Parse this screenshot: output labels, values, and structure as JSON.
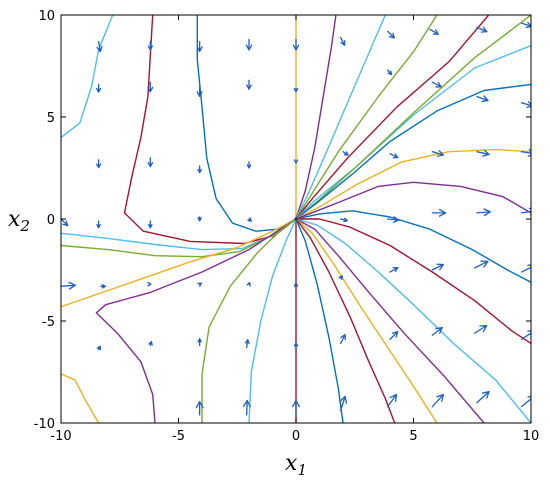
{
  "chart_data": {
    "type": "phase-portrait",
    "title": "",
    "xlabel": {
      "symbol": "x",
      "subscript": "1"
    },
    "ylabel": {
      "symbol": "x",
      "subscript": "2"
    },
    "xlim": [
      -10,
      10
    ],
    "ylim": [
      -10,
      10
    ],
    "xticks": [
      -10,
      -5,
      0,
      5,
      10
    ],
    "yticks": [
      -10,
      -5,
      0,
      5,
      10
    ],
    "xtick_labels": [
      "-10",
      "-5",
      "0",
      "5",
      "10"
    ],
    "ytick_labels": [
      "-10",
      "-5",
      "0",
      "5",
      "10"
    ],
    "grid": false,
    "equilibrium": [
      0,
      0
    ],
    "colors": {
      "blue": "#0072BD",
      "yellow": "#EDB120",
      "maroon": "#A2142F",
      "purple": "#7E2F8E",
      "green": "#77AC30",
      "cyan": "#4DBEEE",
      "arrow": "#1f5fbf"
    },
    "trajectories": [
      {
        "color": "yellow",
        "points": [
          [
            0,
            10
          ],
          [
            0,
            0
          ]
        ]
      },
      {
        "color": "maroon",
        "points": [
          [
            0,
            -10
          ],
          [
            0,
            0
          ]
        ]
      },
      {
        "color": "maroon",
        "points": [
          [
            -6.1,
            10
          ],
          [
            -6.2,
            8
          ],
          [
            -6.3,
            6
          ],
          [
            -6.6,
            4
          ],
          [
            -7.0,
            2
          ],
          [
            -7.3,
            0.3
          ],
          [
            -6.5,
            -0.6
          ],
          [
            -4.5,
            -1.1
          ],
          [
            -2.2,
            -1.2
          ],
          [
            -0.9,
            -0.8
          ],
          [
            0,
            0
          ]
        ]
      },
      {
        "color": "blue",
        "points": [
          [
            -4.2,
            10
          ],
          [
            -4.2,
            7.8
          ],
          [
            -4.0,
            5.5
          ],
          [
            -3.8,
            3
          ],
          [
            -3.4,
            1
          ],
          [
            -2.7,
            -0.2
          ],
          [
            -1.7,
            -0.6
          ],
          [
            -0.8,
            -0.5
          ],
          [
            0,
            0
          ]
        ]
      },
      {
        "color": "cyan",
        "points": [
          [
            -10,
            4
          ],
          [
            -9.2,
            4.7
          ],
          [
            -8.7,
            6.5
          ],
          [
            -8.4,
            8.3
          ],
          [
            -7.8,
            10
          ]
        ]
      },
      {
        "color": "cyan",
        "points": [
          [
            -10,
            -0.7
          ],
          [
            -8,
            -0.95
          ],
          [
            -6,
            -1.25
          ],
          [
            -4,
            -1.5
          ],
          [
            -2.3,
            -1.45
          ],
          [
            -1.0,
            -0.8
          ],
          [
            0,
            0
          ]
        ]
      },
      {
        "color": "green",
        "points": [
          [
            -10,
            -1.3
          ],
          [
            -8,
            -1.5
          ],
          [
            -6,
            -1.8
          ],
          [
            -4,
            -1.85
          ],
          [
            -2.4,
            -1.6
          ],
          [
            -1.0,
            -0.8
          ],
          [
            0,
            0
          ]
        ]
      },
      {
        "color": "yellow",
        "points": [
          [
            -10,
            -4.3
          ],
          [
            -8.5,
            -3.7
          ],
          [
            -6.5,
            -2.9
          ],
          [
            -4.5,
            -2.1
          ],
          [
            -2.5,
            -1.4
          ],
          [
            -1.0,
            -0.6
          ],
          [
            0,
            0
          ]
        ]
      },
      {
        "color": "purple",
        "points": [
          [
            -6.0,
            -10
          ],
          [
            -6.1,
            -8.6
          ],
          [
            -6.6,
            -7.0
          ],
          [
            -7.6,
            -5.6
          ],
          [
            -8.5,
            -4.6
          ],
          [
            -8.1,
            -4.2
          ],
          [
            -6.2,
            -3.6
          ],
          [
            -4.0,
            -2.6
          ],
          [
            -2.0,
            -1.5
          ],
          [
            -0.8,
            -0.6
          ],
          [
            0,
            0
          ]
        ]
      },
      {
        "color": "yellow",
        "points": [
          [
            -10,
            -7.6
          ],
          [
            -9.4,
            -7.9
          ],
          [
            -9.0,
            -8.8
          ],
          [
            -8.4,
            -10
          ]
        ]
      },
      {
        "color": "green",
        "points": [
          [
            -4.0,
            -10
          ],
          [
            -4.0,
            -7.6
          ],
          [
            -3.7,
            -5.3
          ],
          [
            -2.8,
            -3.3
          ],
          [
            -1.6,
            -1.6
          ],
          [
            -0.6,
            -0.5
          ],
          [
            0,
            0
          ]
        ]
      },
      {
        "color": "cyan",
        "points": [
          [
            -2.0,
            -10
          ],
          [
            -1.9,
            -7.5
          ],
          [
            -1.5,
            -5.0
          ],
          [
            -1.0,
            -2.8
          ],
          [
            -0.4,
            -1.0
          ],
          [
            0,
            0
          ]
        ]
      },
      {
        "color": "purple",
        "points": [
          [
            0,
            0
          ],
          [
            0.4,
            1.4
          ],
          [
            0.8,
            3.5
          ],
          [
            1.2,
            6.3
          ],
          [
            1.5,
            8.4
          ],
          [
            1.7,
            10
          ]
        ]
      },
      {
        "color": "cyan",
        "points": [
          [
            0,
            0
          ],
          [
            0.5,
            1.2
          ],
          [
            1.3,
            3.3
          ],
          [
            2.3,
            6.0
          ],
          [
            3.2,
            8.4
          ],
          [
            3.8,
            10
          ]
        ]
      },
      {
        "color": "green",
        "points": [
          [
            0,
            0
          ],
          [
            0.6,
            1.1
          ],
          [
            1.8,
            3.3
          ],
          [
            3.5,
            6.0
          ],
          [
            5.0,
            8.2
          ],
          [
            6.0,
            10
          ]
        ]
      },
      {
        "color": "maroon",
        "points": [
          [
            0,
            0
          ],
          [
            0.7,
            1.0
          ],
          [
            2.2,
            3.0
          ],
          [
            4.3,
            5.5
          ],
          [
            6.5,
            7.7
          ],
          [
            8.2,
            10
          ]
        ]
      },
      {
        "color": "cyan",
        "points": [
          [
            0,
            0
          ],
          [
            0.8,
            0.9
          ],
          [
            2.6,
            2.6
          ],
          [
            5.0,
            5.1
          ],
          [
            7.6,
            7.4
          ],
          [
            10,
            8.5
          ]
        ]
      },
      {
        "color": "green",
        "points": [
          [
            0,
            0
          ],
          [
            0.9,
            0.85
          ],
          [
            2.6,
            2.6
          ],
          [
            5.0,
            5.2
          ],
          [
            7.6,
            7.9
          ],
          [
            10,
            10
          ]
        ]
      },
      {
        "color": "blue",
        "points": [
          [
            0,
            0
          ],
          [
            0.9,
            0.8
          ],
          [
            2.4,
            2.2
          ],
          [
            4.0,
            3.8
          ],
          [
            6.0,
            5.3
          ],
          [
            8.0,
            6.3
          ],
          [
            10,
            6.6
          ]
        ]
      },
      {
        "color": "yellow",
        "points": [
          [
            0,
            0
          ],
          [
            1.0,
            0.6
          ],
          [
            2.6,
            1.7
          ],
          [
            4.5,
            2.8
          ],
          [
            6.5,
            3.3
          ],
          [
            8.5,
            3.4
          ],
          [
            10,
            3.3
          ]
        ]
      },
      {
        "color": "purple",
        "points": [
          [
            0,
            0
          ],
          [
            0.9,
            0.4
          ],
          [
            2.0,
            0.9
          ],
          [
            3.5,
            1.6
          ],
          [
            5.0,
            1.8
          ],
          [
            7.0,
            1.6
          ],
          [
            8.8,
            1.1
          ],
          [
            10,
            0.3
          ]
        ]
      },
      {
        "color": "blue",
        "points": [
          [
            0,
            0
          ],
          [
            1.0,
            0.25
          ],
          [
            2.4,
            0.4
          ],
          [
            4.0,
            0.1
          ],
          [
            5.7,
            -0.5
          ],
          [
            7.5,
            -1.5
          ],
          [
            9.0,
            -2.5
          ],
          [
            10,
            -3.1
          ]
        ]
      },
      {
        "color": "maroon",
        "points": [
          [
            0,
            0
          ],
          [
            1.0,
            0
          ],
          [
            2.3,
            -0.4
          ],
          [
            4.0,
            -1.3
          ],
          [
            5.8,
            -2.6
          ],
          [
            7.6,
            -4.0
          ],
          [
            9.2,
            -5.5
          ],
          [
            10,
            -6.1
          ]
        ]
      },
      {
        "color": "cyan",
        "points": [
          [
            0,
            0
          ],
          [
            0.9,
            -0.3
          ],
          [
            2.1,
            -1.2
          ],
          [
            3.5,
            -2.6
          ],
          [
            5.0,
            -4.2
          ],
          [
            6.7,
            -6.1
          ],
          [
            8.5,
            -7.9
          ],
          [
            10,
            -10
          ]
        ]
      },
      {
        "color": "purple",
        "points": [
          [
            0,
            0
          ],
          [
            0.8,
            -0.5
          ],
          [
            1.8,
            -1.8
          ],
          [
            3.1,
            -3.6
          ],
          [
            4.6,
            -5.6
          ],
          [
            6.3,
            -7.7
          ],
          [
            8.0,
            -10
          ]
        ]
      },
      {
        "color": "yellow",
        "points": [
          [
            0,
            0
          ],
          [
            0.7,
            -0.7
          ],
          [
            1.6,
            -2.2
          ],
          [
            2.7,
            -4.2
          ],
          [
            3.9,
            -6.3
          ],
          [
            5.0,
            -8.2
          ],
          [
            6.0,
            -10
          ]
        ]
      },
      {
        "color": "maroon",
        "points": [
          [
            0,
            0
          ],
          [
            0.6,
            -0.9
          ],
          [
            1.4,
            -2.6
          ],
          [
            2.3,
            -4.8
          ],
          [
            3.1,
            -7.0
          ],
          [
            3.8,
            -8.8
          ],
          [
            4.2,
            -10
          ]
        ]
      },
      {
        "color": "blue",
        "points": [
          [
            0,
            0
          ],
          [
            0.4,
            -1.1
          ],
          [
            0.9,
            -3.2
          ],
          [
            1.4,
            -5.8
          ],
          [
            1.8,
            -8.3
          ],
          [
            2.0,
            -10
          ]
        ]
      }
    ],
    "quiver": [
      [
        -8.4,
        8.7,
        0.15,
        -0.9
      ],
      [
        -6.2,
        8.7,
        0,
        -0.75
      ],
      [
        -4.1,
        8.7,
        0,
        -0.9
      ],
      [
        -2.0,
        8.8,
        0,
        -0.95
      ],
      [
        0,
        8.8,
        0,
        -0.95
      ],
      [
        1.9,
        8.9,
        0.35,
        -0.7
      ],
      [
        3.9,
        9.2,
        0.6,
        -0.6
      ],
      [
        5.7,
        9.3,
        0.75,
        -0.45
      ],
      [
        7.7,
        9.4,
        0.9,
        -0.4
      ],
      [
        9.6,
        9.6,
        0.9,
        -0.3
      ],
      [
        -8.4,
        6.6,
        0,
        -0.7
      ],
      [
        -6.2,
        6.7,
        0,
        -0.85
      ],
      [
        -4.1,
        6.5,
        0,
        -0.9
      ],
      [
        -2.0,
        6.8,
        0,
        -0.8
      ],
      [
        0,
        6.4,
        0,
        -0.3
      ],
      [
        3.9,
        7.3,
        0.35,
        -0.4
      ],
      [
        5.8,
        6.7,
        0.8,
        -0.4
      ],
      [
        7.7,
        6.0,
        1.0,
        -0.35
      ],
      [
        9.6,
        5.7,
        1.0,
        -0.3
      ],
      [
        -8.4,
        2.9,
        0,
        -0.7
      ],
      [
        -6.2,
        3.0,
        0,
        -0.8
      ],
      [
        -4.1,
        2.6,
        0,
        -0.6
      ],
      [
        -2.0,
        2.8,
        0,
        -0.55
      ],
      [
        0,
        2.8,
        0,
        -0.1
      ],
      [
        2.0,
        3.3,
        0.45,
        -0.3
      ],
      [
        4.0,
        3.2,
        0.7,
        -0.35
      ],
      [
        5.8,
        3.3,
        1.0,
        -0.3
      ],
      [
        7.7,
        3.3,
        1.1,
        -0.25
      ],
      [
        9.6,
        3.3,
        1.2,
        -0.2
      ],
      [
        -8.4,
        -0.1,
        0,
        -0.6
      ],
      [
        -6.2,
        -0.1,
        0,
        -0.6
      ],
      [
        -4.1,
        0.1,
        0,
        -0.35
      ],
      [
        -2.0,
        0,
        0.2,
        -0.2
      ],
      [
        1.9,
        0,
        0.6,
        -0.15
      ],
      [
        3.9,
        0,
        1.0,
        -0.1
      ],
      [
        5.8,
        0.3,
        1.2,
        0
      ],
      [
        7.7,
        0.3,
        1.2,
        0.1
      ],
      [
        9.6,
        0.3,
        1.3,
        0.2
      ],
      [
        -10,
        0,
        0.6,
        -0.6
      ],
      [
        -8.3,
        -3.3,
        0.4,
        0
      ],
      [
        -6.2,
        -3.2,
        0.05,
        0
      ],
      [
        -4.1,
        -3.2,
        0.15,
        0.1
      ],
      [
        -2.0,
        -3.2,
        0.05,
        0.15
      ],
      [
        0,
        -3.2,
        0,
        0.1
      ],
      [
        1.9,
        -2.9,
        0.15,
        0.2
      ],
      [
        4.0,
        -2.6,
        0.7,
        0.4
      ],
      [
        5.8,
        -2.5,
        1.0,
        0.5
      ],
      [
        7.6,
        -2.4,
        1.2,
        0.6
      ],
      [
        9.6,
        -2.6,
        1.2,
        0.6
      ],
      [
        -10,
        -3.3,
        1.3,
        0.1
      ],
      [
        -8.4,
        -6.4,
        0.15,
        0.3
      ],
      [
        -6.2,
        -6.2,
        0.1,
        0.35
      ],
      [
        -4.1,
        -6.2,
        0,
        0.6
      ],
      [
        -2.1,
        -6.3,
        0.1,
        0.7
      ],
      [
        0,
        -6.4,
        0,
        0.6
      ],
      [
        1.9,
        -6.1,
        0.4,
        0.8
      ],
      [
        4.0,
        -5.9,
        0.7,
        0.7
      ],
      [
        5.8,
        -5.7,
        0.9,
        0.7
      ],
      [
        7.6,
        -5.6,
        1.1,
        0.7
      ],
      [
        9.6,
        -5.9,
        1.2,
        0.8
      ],
      [
        -4.1,
        -9.6,
        0,
        1.2
      ],
      [
        -2.1,
        -9.6,
        0.05,
        1.3
      ],
      [
        0,
        -9.6,
        0,
        1.3
      ],
      [
        1.9,
        -9.4,
        0.4,
        1.3
      ],
      [
        3.9,
        -9.2,
        0.8,
        1.1
      ],
      [
        5.8,
        -9.2,
        1.0,
        1.1
      ],
      [
        7.7,
        -9.0,
        1.1,
        1.0
      ],
      [
        9.6,
        -9.2,
        1.2,
        1.0
      ]
    ]
  }
}
